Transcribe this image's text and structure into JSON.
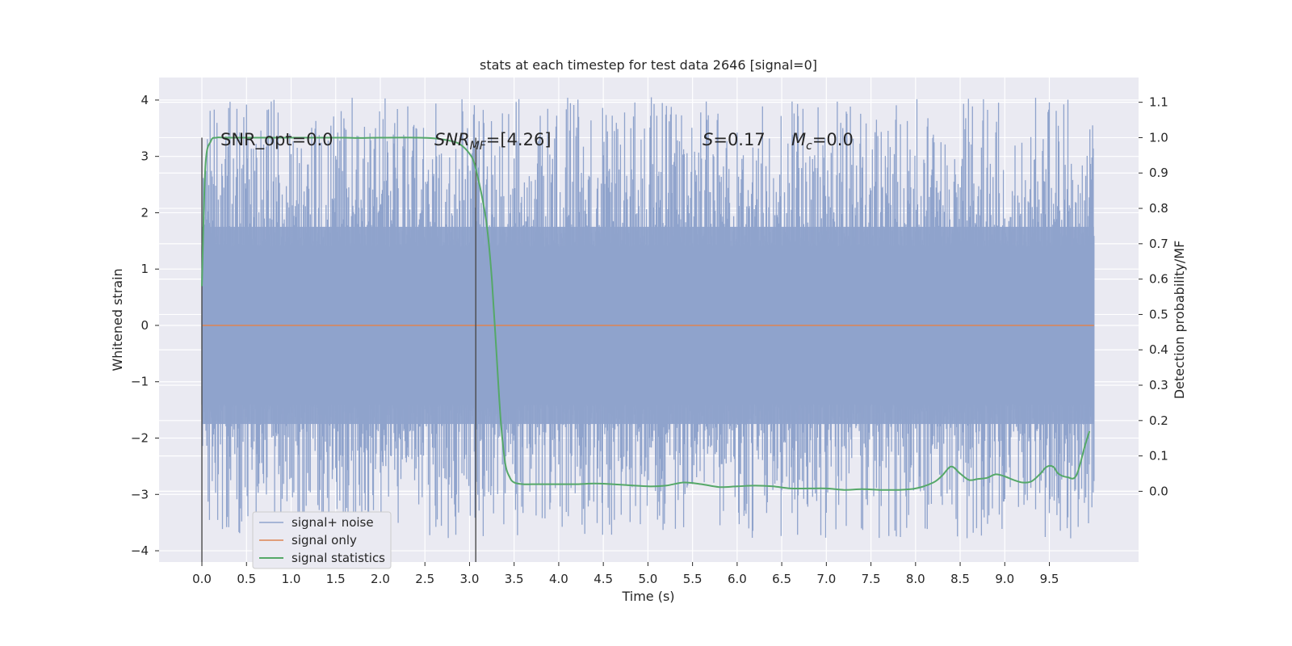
{
  "chart_data": {
    "type": "line",
    "title": "stats at each timestep for test data 2646 [signal=0]",
    "xlabel": "Time (s)",
    "ylabel": "Whitened strain",
    "ylabel_right": "Detection probability/MF",
    "xlim": [
      -0.48,
      10.5
    ],
    "ylim": [
      -4.2,
      4.4
    ],
    "ylim_right": [
      -0.2,
      1.17
    ],
    "x_ticks": [
      "0.0",
      "0.5",
      "1.0",
      "1.5",
      "2.0",
      "2.5",
      "3.0",
      "3.5",
      "4.0",
      "4.5",
      "5.0",
      "5.5",
      "6.0",
      "6.5",
      "7.0",
      "7.5",
      "8.0",
      "8.5",
      "9.0",
      "9.5"
    ],
    "y_ticks": [
      "4",
      "3",
      "2",
      "1",
      "0",
      "−1",
      "−2",
      "−3",
      "−4"
    ],
    "y_right_ticks": [
      "1.1",
      "1.0",
      "0.9",
      "0.8",
      "0.7",
      "0.6",
      "0.5",
      "0.4",
      "0.3",
      "0.2",
      "0.1",
      "0.0"
    ],
    "grid": true,
    "legend_position": "bottom-left",
    "annotations": {
      "snr_opt": "SNR_opt=0.0",
      "snr_mf_main": "SNR",
      "snr_mf_sub": "MF",
      "snr_mf_value": "=[4.26]",
      "s_main": "S",
      "s_value": "=0.17",
      "mc_main": "M",
      "mc_sub": "c",
      "mc_value": "=0.0"
    },
    "markers": [
      {
        "x": 0.0,
        "y_range": [
          -0.2,
          1.0
        ]
      },
      {
        "x": 3.07,
        "y_range": [
          -0.2,
          1.0
        ]
      }
    ],
    "series": [
      {
        "name": "signal+ noise",
        "color": "#8fa3cc",
        "x_range": [
          0.0,
          10.0
        ],
        "dense_band": [
          -1.75,
          1.75
        ],
        "peak_max": 4.05,
        "peak_min": -3.78
      },
      {
        "name": "signal only",
        "color": "#dd8452",
        "x": [
          0.0,
          10.0
        ],
        "values": [
          0.0,
          0.0
        ]
      },
      {
        "name": "signal statistics",
        "color": "#55a868",
        "axis": "right",
        "x": [
          0.0,
          0.04,
          0.1,
          0.16,
          0.25,
          0.4,
          0.8,
          1.2,
          1.6,
          1.75,
          2.0,
          2.4,
          2.6,
          2.8,
          2.9,
          3.0,
          3.05,
          3.1,
          3.15,
          3.2,
          3.25,
          3.3,
          3.35,
          3.4,
          3.45,
          3.5,
          3.6,
          3.7,
          3.85,
          4.0,
          4.2,
          4.4,
          4.6,
          4.8,
          5.0,
          5.2,
          5.4,
          5.6,
          5.8,
          6.0,
          6.2,
          6.4,
          6.6,
          6.8,
          7.0,
          7.2,
          7.4,
          7.6,
          7.8,
          8.0,
          8.2,
          8.3,
          8.4,
          8.5,
          8.6,
          8.7,
          8.8,
          8.9,
          9.0,
          9.1,
          9.2,
          9.3,
          9.4,
          9.45,
          9.5,
          9.55,
          9.6,
          9.7,
          9.8,
          9.9,
          9.95
        ],
        "values": [
          0.58,
          0.92,
          0.99,
          1.0,
          1.0,
          1.0,
          1.0,
          1.0,
          1.0,
          0.999,
          1.0,
          1.0,
          0.998,
          0.99,
          0.98,
          0.955,
          0.93,
          0.88,
          0.82,
          0.74,
          0.6,
          0.4,
          0.2,
          0.08,
          0.04,
          0.025,
          0.02,
          0.02,
          0.02,
          0.02,
          0.02,
          0.022,
          0.02,
          0.017,
          0.014,
          0.016,
          0.025,
          0.02,
          0.012,
          0.014,
          0.016,
          0.014,
          0.008,
          0.008,
          0.008,
          0.004,
          0.006,
          0.004,
          0.004,
          0.008,
          0.025,
          0.045,
          0.07,
          0.05,
          0.032,
          0.035,
          0.038,
          0.048,
          0.042,
          0.032,
          0.025,
          0.028,
          0.05,
          0.065,
          0.072,
          0.068,
          0.05,
          0.04,
          0.044,
          0.13,
          0.17
        ]
      }
    ]
  }
}
